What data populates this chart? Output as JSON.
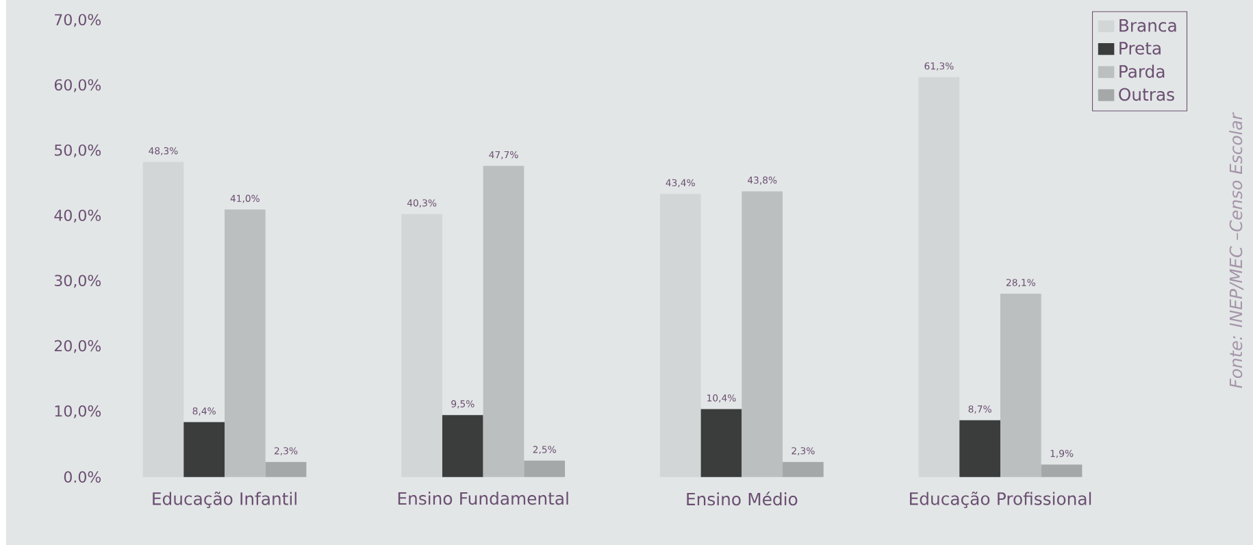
{
  "chart_data": {
    "type": "bar",
    "categories": [
      "Educação Infantil",
      "Ensino Fundamental",
      "Ensino Médio",
      "Educação Profissional"
    ],
    "series": [
      {
        "name": "Branca",
        "color": "#d3d6d6",
        "values": [
          48.3,
          40.3,
          43.4,
          61.3
        ],
        "value_labels": [
          "48,3%",
          "40,3%",
          "43,4%",
          "61,3%"
        ]
      },
      {
        "name": "Preta",
        "color": "#3b3d3d",
        "values": [
          8.4,
          9.5,
          10.4,
          8.7
        ],
        "value_labels": [
          "8,4%",
          "9,5%",
          "10,4%",
          "8,7%"
        ]
      },
      {
        "name": "Parda",
        "color": "#bcbfbf",
        "values": [
          41.0,
          47.7,
          43.8,
          28.1
        ],
        "value_labels": [
          "41,0%",
          "47,7%",
          "43,8%",
          "28,1%"
        ]
      },
      {
        "name": "Outras",
        "color": "#a5a8a8",
        "values": [
          2.3,
          2.5,
          2.3,
          1.9
        ],
        "value_labels": [
          "2,3%",
          "2,5%",
          "2,3%",
          "1,9%"
        ]
      }
    ],
    "ylim": [
      0,
      70
    ],
    "yticks": [
      {
        "value": 0,
        "label": "0.0%"
      },
      {
        "value": 10,
        "label": "10,0%"
      },
      {
        "value": 20,
        "label": "20,0%"
      },
      {
        "value": 30,
        "label": "30,0%"
      },
      {
        "value": 40,
        "label": "40,0%"
      },
      {
        "value": 50,
        "label": "50,0%"
      },
      {
        "value": 60,
        "label": "60,0%"
      },
      {
        "value": 70,
        "label": "70,0%"
      }
    ],
    "grid": false,
    "legend": "top right",
    "annotations": [
      "Fonte: INEP/MEC –Censo Escolar"
    ]
  }
}
